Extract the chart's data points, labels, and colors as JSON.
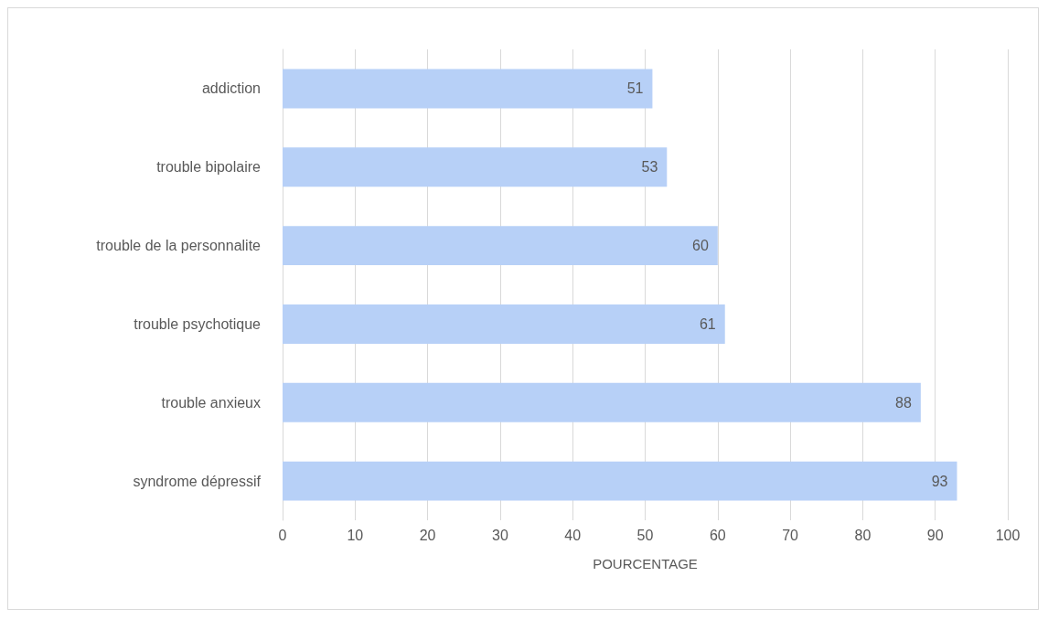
{
  "chart_data": {
    "type": "bar",
    "orientation": "horizontal",
    "categories": [
      "addiction",
      "trouble bipolaire",
      "trouble de la personnalite",
      "trouble psychotique",
      "trouble anxieux",
      "syndrome dépressif"
    ],
    "values": [
      51,
      53,
      60,
      61,
      88,
      93
    ],
    "color": "#b7d0f7",
    "xlabel": "POURCENTAGE",
    "xlim": [
      0,
      100
    ],
    "xticks": [
      0,
      10,
      20,
      30,
      40,
      50,
      60,
      70,
      80,
      90,
      100
    ],
    "grid": "x",
    "data_labels": true
  }
}
